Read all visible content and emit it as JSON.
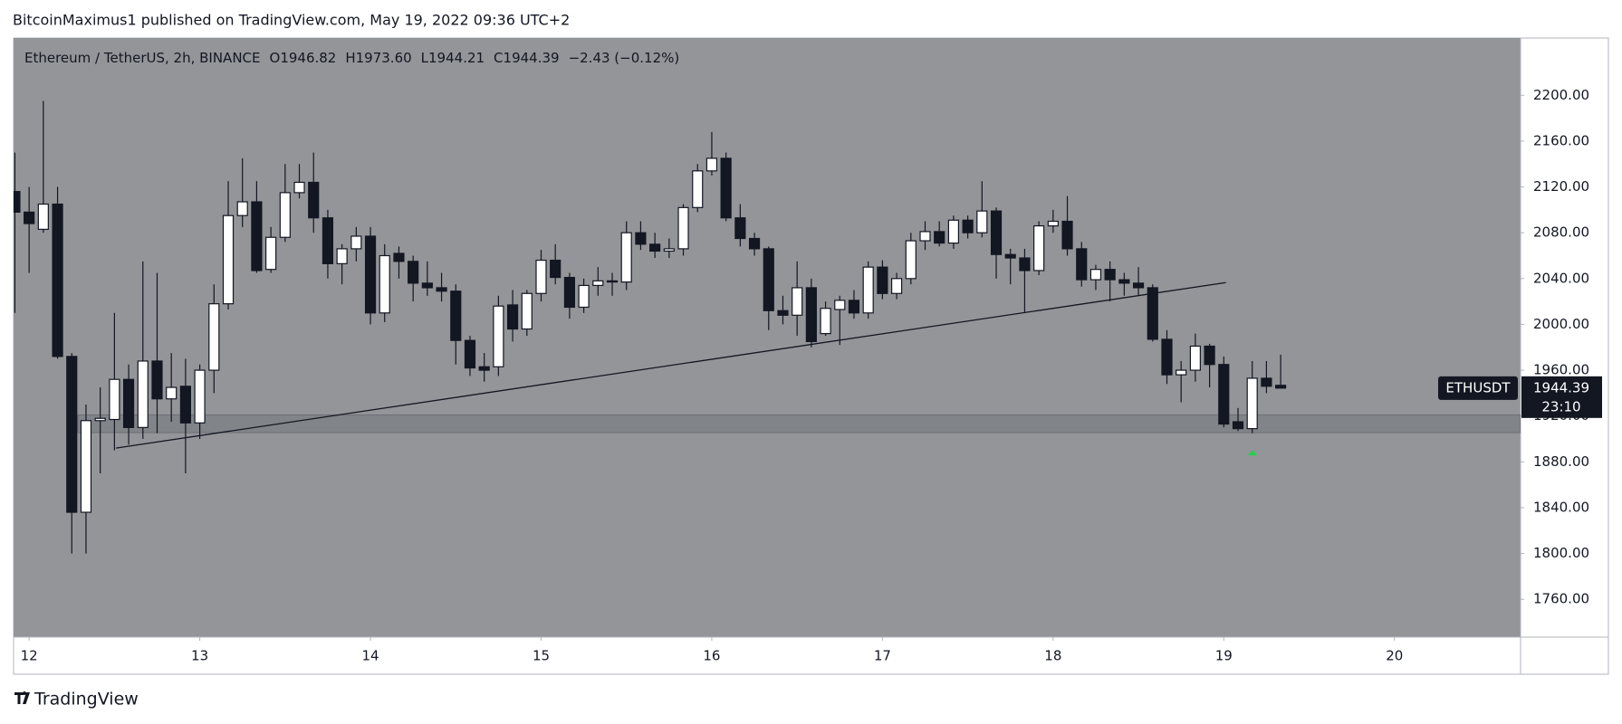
{
  "header": "BitcoinMaximus1 published on TradingView.com, May 19, 2022 09:36 UTC+2",
  "footer": "TradingView",
  "chart_data": {
    "type": "candlestick",
    "legend": {
      "symbol": "Ethereum / TetherUS, 2h, BINANCE",
      "fields": [
        {
          "label": "O",
          "value": "1946.82"
        },
        {
          "label": "H",
          "value": "1973.60"
        },
        {
          "label": "L",
          "value": "1944.21"
        },
        {
          "label": "C",
          "value": "1944.39"
        }
      ],
      "change": "−2.43 (−0.12%)"
    },
    "currency": "USDT",
    "price_label": {
      "symbol": "ETHUSDT",
      "price": "1944.39",
      "countdown": "23:10"
    },
    "up_color": "#ffffff",
    "down_color": "#131722",
    "background": "#939598",
    "x": [
      11.9167,
      12,
      12.0833,
      12.1667,
      12.25,
      12.3333,
      12.4167,
      12.5,
      12.5833,
      12.6667,
      12.75,
      12.8333,
      12.9167,
      13,
      13.0833,
      13.1667,
      13.25,
      13.3333,
      13.4167,
      13.5,
      13.5833,
      13.6667,
      13.75,
      13.8333,
      13.9167,
      14,
      14.0833,
      14.1667,
      14.25,
      14.3333,
      14.4167,
      14.5,
      14.5833,
      14.6667,
      14.75,
      14.8333,
      14.9167,
      15,
      15.0833,
      15.1667,
      15.25,
      15.3333,
      15.4167,
      15.5,
      15.5833,
      15.6667,
      15.75,
      15.8333,
      15.9167,
      16,
      16.0833,
      16.1667,
      16.25,
      16.3333,
      16.4167,
      16.5,
      16.5833,
      16.6667,
      16.75,
      16.8333,
      16.9167,
      17,
      17.0833,
      17.1667,
      17.25,
      17.3333,
      17.4167,
      17.5,
      17.5833,
      17.6667,
      17.75,
      17.8333,
      17.9167,
      18,
      18.0833,
      18.1667,
      18.25,
      18.3333,
      18.4167,
      18.5,
      18.5833,
      18.6667,
      18.75,
      18.8333,
      18.9167,
      19,
      19.0833,
      19.1667,
      19.25,
      19.3333
    ],
    "open": [
      2116,
      2098,
      2083,
      2105,
      1972,
      1836,
      1916,
      1917,
      1952,
      1910,
      1968,
      1935,
      1946,
      1914,
      1960,
      2018,
      2095,
      2107,
      2048,
      2076,
      2115,
      2124,
      2093,
      2053,
      2066,
      2077,
      2010,
      2062,
      2055,
      2036,
      2032,
      2029,
      1986,
      1963,
      1963,
      2017,
      1996,
      2027,
      2056,
      2041,
      2015,
      2034,
      2038,
      2037,
      2080,
      2070,
      2064,
      2066,
      2102,
      2134,
      2145,
      2093,
      2075,
      2066,
      2012,
      2008,
      2032,
      1992,
      2013,
      2021,
      2010,
      2050,
      2027,
      2040,
      2073,
      2081,
      2071,
      2091,
      2080,
      2099,
      2061,
      2058,
      2047,
      2086,
      2090,
      2066,
      2039,
      2048,
      2039,
      2036,
      2032,
      1987,
      1956,
      1960,
      1981,
      1965,
      1915,
      1909,
      1953,
      1946.82
    ],
    "high": [
      2150,
      2120,
      2195,
      2120,
      1975,
      1930,
      1945,
      2010,
      1965,
      2055,
      2045,
      1975,
      1970,
      1965,
      2035,
      2125,
      2145,
      2125,
      2085,
      2140,
      2140,
      2150,
      2100,
      2070,
      2085,
      2085,
      2070,
      2068,
      2060,
      2055,
      2045,
      2035,
      1990,
      1975,
      2025,
      2030,
      2030,
      2065,
      2070,
      2045,
      2040,
      2050,
      2045,
      2090,
      2090,
      2080,
      2075,
      2105,
      2140,
      2168,
      2150,
      2105,
      2080,
      2068,
      2025,
      2055,
      2040,
      2020,
      2025,
      2030,
      2055,
      2056,
      2045,
      2080,
      2090,
      2090,
      2095,
      2095,
      2125,
      2102,
      2066,
      2066,
      2090,
      2100,
      2112,
      2072,
      2052,
      2055,
      2045,
      2050,
      2035,
      1995,
      1968,
      1992,
      1983,
      1972,
      1927,
      1968,
      1968,
      1973.6
    ],
    "low": [
      2010,
      2045,
      2080,
      1970,
      1800,
      1800,
      1870,
      1890,
      1895,
      1900,
      1905,
      1915,
      1870,
      1900,
      1940,
      2013,
      2085,
      2045,
      2045,
      2072,
      2110,
      2080,
      2040,
      2035,
      2055,
      2000,
      2002,
      2040,
      2020,
      2025,
      2020,
      1965,
      1955,
      1950,
      1955,
      1985,
      1990,
      2020,
      2035,
      2005,
      2010,
      2025,
      2025,
      2030,
      2065,
      2058,
      2058,
      2060,
      2098,
      2130,
      2090,
      2068,
      2060,
      1995,
      2000,
      1990,
      1980,
      1990,
      1982,
      2005,
      2005,
      2022,
      2022,
      2035,
      2065,
      2068,
      2066,
      2075,
      2076,
      2040,
      2035,
      2010,
      2043,
      2080,
      2060,
      2033,
      2030,
      2020,
      2025,
      2025,
      1985,
      1948,
      1932,
      1950,
      1945,
      1910,
      1907,
      1905,
      1940,
      1944.21
    ],
    "close": [
      2098,
      2088,
      2105,
      1972,
      1836,
      1916,
      1918,
      1952,
      1910,
      1968,
      1935,
      1945,
      1914,
      1960,
      2018,
      2095,
      2107,
      2047,
      2076,
      2115,
      2124,
      2093,
      2053,
      2066,
      2077,
      2010,
      2060,
      2055,
      2036,
      2032,
      2029,
      1986,
      1962,
      1960,
      2016,
      1996,
      2027,
      2056,
      2041,
      2015,
      2034,
      2038,
      2037,
      2080,
      2070,
      2064,
      2066,
      2102,
      2134,
      2145,
      2093,
      2075,
      2066,
      2012,
      2008,
      2032,
      1985,
      2014,
      2021,
      2010,
      2050,
      2027,
      2040,
      2073,
      2081,
      2071,
      2091,
      2080,
      2099,
      2061,
      2058,
      2047,
      2086,
      2090,
      2066,
      2039,
      2048,
      2039,
      2036,
      2032,
      1987,
      1956,
      1960,
      1981,
      1965,
      1913,
      1909,
      1953,
      1946,
      1944.39
    ],
    "xlim": [
      11.909,
      20.739
    ],
    "ylim": [
      1727,
      2250
    ],
    "xticks": [
      12,
      13,
      14,
      15,
      16,
      17,
      18,
      19,
      20
    ],
    "yticks": [
      {
        "value": 1760,
        "label": "1760.00"
      },
      {
        "value": 1800,
        "label": "1800.00"
      },
      {
        "value": 1840,
        "label": "1840.00"
      },
      {
        "value": 1880,
        "label": "1880.00"
      },
      {
        "value": 1920,
        "label": "1920.00"
      },
      {
        "value": 1960,
        "label": "1960.00"
      },
      {
        "value": 2000,
        "label": "2000.00"
      },
      {
        "value": 2040,
        "label": "2040.00"
      },
      {
        "value": 2080,
        "label": "2080.00"
      },
      {
        "value": 2120,
        "label": "2120.00"
      },
      {
        "value": 2160,
        "label": "2160.00"
      },
      {
        "value": 2200,
        "label": "2200.00"
      }
    ],
    "grid": false,
    "drawings": {
      "trendline": {
        "x": [
          12.509,
          19.012
        ],
        "y": [
          1892,
          2036.5
        ],
        "color": "#131722"
      },
      "support_zone": {
        "x": [
          12.285,
          20.739
        ],
        "y": [
          1905.5,
          1921
        ],
        "color": "#7d7f85"
      },
      "arrow": {
        "x": 19.1667,
        "y": 1888,
        "color": "#22d14b"
      }
    }
  }
}
